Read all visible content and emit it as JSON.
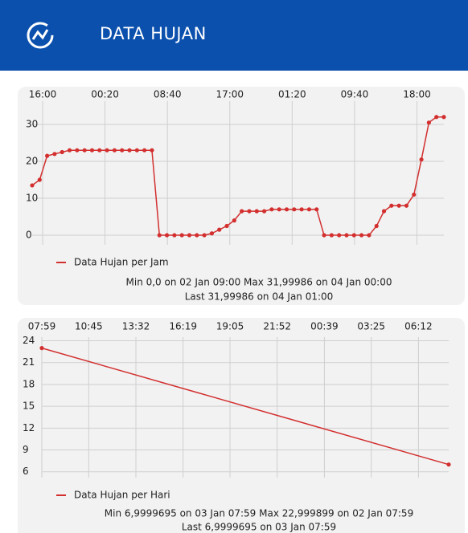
{
  "header": {
    "title": "DATA HUJAN"
  },
  "chart_data": [
    {
      "type": "line",
      "x": [
        0,
        1,
        2,
        3,
        4,
        5,
        6,
        7,
        8,
        9,
        10,
        11,
        12,
        13,
        14,
        15,
        16,
        17,
        18,
        19,
        20,
        21,
        22,
        23,
        24,
        25,
        26,
        27,
        28,
        29,
        30,
        31,
        32,
        33,
        34,
        35,
        36,
        37,
        38,
        39,
        40,
        41,
        42,
        43,
        44,
        45,
        46,
        47,
        48,
        49,
        50,
        51,
        52,
        53,
        54,
        55
      ],
      "series": [
        {
          "name": "Data Hujan per Jam",
          "color": "#d32f2f",
          "values": [
            13.5,
            15,
            21.5,
            22,
            22.5,
            23,
            23,
            23,
            23,
            23,
            23,
            23,
            23,
            23,
            23,
            23,
            23,
            0,
            0,
            0,
            0,
            0,
            0,
            0,
            0.5,
            1.5,
            2.5,
            4,
            6.5,
            6.5,
            6.5,
            6.5,
            7,
            7,
            7,
            7,
            7,
            7,
            7,
            0,
            0,
            0,
            0,
            0,
            0,
            0,
            2.5,
            6.5,
            8,
            8,
            8,
            11,
            20.5,
            30.5,
            32,
            32
          ]
        }
      ],
      "xlim": [
        0,
        55
      ],
      "xticks": [
        {
          "value": 1.4,
          "label": "16:00"
        },
        {
          "value": 9.73,
          "label": "00:20"
        },
        {
          "value": 18.07,
          "label": "08:40"
        },
        {
          "value": 26.4,
          "label": "17:00"
        },
        {
          "value": 34.73,
          "label": "01:20"
        },
        {
          "value": 43.07,
          "label": "09:40"
        },
        {
          "value": 51.4,
          "label": "18:00"
        }
      ],
      "ylim": [
        -2.6,
        36.3
      ],
      "yticks": [
        0,
        10,
        20,
        30
      ],
      "grid": true,
      "stats": [
        "Min  0,0 on 02 Jan 09:00    Max  31,99986 on 04 Jan 00:00",
        "Last  31,99986 on 04 Jan 01:00"
      ]
    },
    {
      "type": "line",
      "x": [
        0,
        1440
      ],
      "series": [
        {
          "name": "Data Hujan per Hari",
          "color": "#d32f2f",
          "values": [
            22.999899,
            6.9999695
          ]
        }
      ],
      "xlim": [
        0,
        1440
      ],
      "xticks": [
        {
          "value": 0,
          "label": "07:59"
        },
        {
          "value": 166,
          "label": "10:45"
        },
        {
          "value": 333,
          "label": "13:32"
        },
        {
          "value": 500,
          "label": "16:19"
        },
        {
          "value": 666,
          "label": "19:05"
        },
        {
          "value": 833,
          "label": "21:52"
        },
        {
          "value": 1000,
          "label": "00:39"
        },
        {
          "value": 1166,
          "label": "03:25"
        },
        {
          "value": 1333,
          "label": "06:12"
        }
      ],
      "ylim": [
        5.2,
        24.5
      ],
      "yticks": [
        6,
        9,
        12,
        15,
        18,
        21,
        24
      ],
      "grid": true,
      "stats": [
        "Min  6,9999695 on 03 Jan 07:59    Max  22,999899 on 02 Jan 07:59",
        "Last  6,9999695 on 03 Jan 07:59"
      ]
    }
  ]
}
